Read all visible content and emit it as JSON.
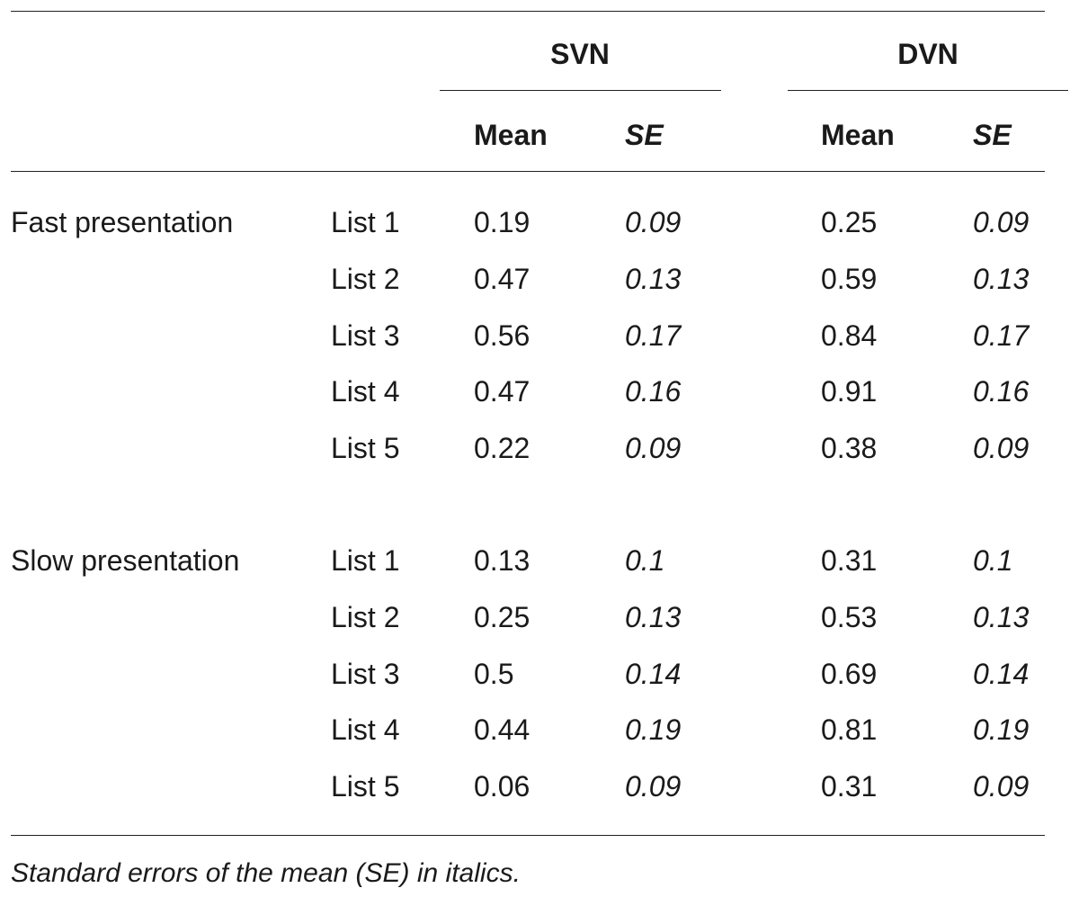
{
  "table": {
    "groups": [
      {
        "label": "SVN"
      },
      {
        "label": "DVN"
      }
    ],
    "subheaders": [
      "Mean",
      "SE",
      "Mean",
      "SE"
    ],
    "sections": [
      {
        "label": "Fast presentation",
        "rows": [
          {
            "list": "List 1",
            "svn_mean": "0.19",
            "svn_se": "0.09",
            "dvn_mean": "0.25",
            "dvn_se": "0.09"
          },
          {
            "list": "List 2",
            "svn_mean": "0.47",
            "svn_se": "0.13",
            "dvn_mean": "0.59",
            "dvn_se": "0.13"
          },
          {
            "list": "List 3",
            "svn_mean": "0.56",
            "svn_se": "0.17",
            "dvn_mean": "0.84",
            "dvn_se": "0.17"
          },
          {
            "list": "List 4",
            "svn_mean": "0.47",
            "svn_se": "0.16",
            "dvn_mean": "0.91",
            "dvn_se": "0.16"
          },
          {
            "list": "List 5",
            "svn_mean": "0.22",
            "svn_se": "0.09",
            "dvn_mean": "0.38",
            "dvn_se": "0.09"
          }
        ]
      },
      {
        "label": "Slow presentation",
        "rows": [
          {
            "list": "List 1",
            "svn_mean": "0.13",
            "svn_se": "0.1",
            "dvn_mean": "0.31",
            "dvn_se": "0.1"
          },
          {
            "list": "List 2",
            "svn_mean": "0.25",
            "svn_se": "0.13",
            "dvn_mean": "0.53",
            "dvn_se": "0.13"
          },
          {
            "list": "List 3",
            "svn_mean": "0.5",
            "svn_se": "0.14",
            "dvn_mean": "0.69",
            "dvn_se": "0.14"
          },
          {
            "list": "List 4",
            "svn_mean": "0.44",
            "svn_se": "0.19",
            "dvn_mean": "0.81",
            "dvn_se": "0.19"
          },
          {
            "list": "List 5",
            "svn_mean": "0.06",
            "svn_se": "0.09",
            "dvn_mean": "0.31",
            "dvn_se": "0.09"
          }
        ]
      }
    ],
    "footnote": "Standard errors of the mean (SE) in italics."
  }
}
